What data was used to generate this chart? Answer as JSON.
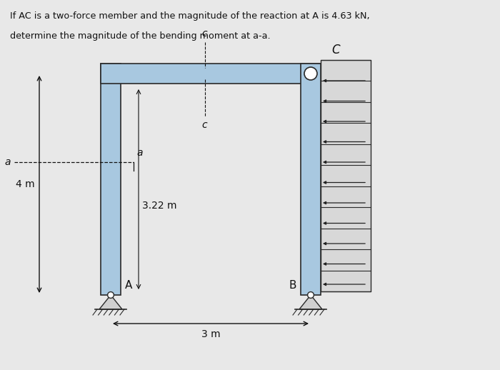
{
  "title_line1": "If AC is a two-force member and the magnitude of the reaction at A is 4.63 kN,",
  "title_line2": "determine the magnitude of the bending moment at a-a.",
  "bg_color": "#e8e8e8",
  "frame_color": "#a8c8e0",
  "frame_edge_color": "#2a2a2a",
  "wall_color": "#e0e0e0",
  "arrow_color": "#222222",
  "text_color": "#111111",
  "label_4m": "4 m",
  "label_322m": "3.22 m",
  "label_3m": "3 m",
  "label_A": "A",
  "label_B": "B",
  "label_C": "C",
  "label_c_upper": "c",
  "label_c_lower": "c",
  "label_a_left": "a",
  "label_a_right": "a"
}
